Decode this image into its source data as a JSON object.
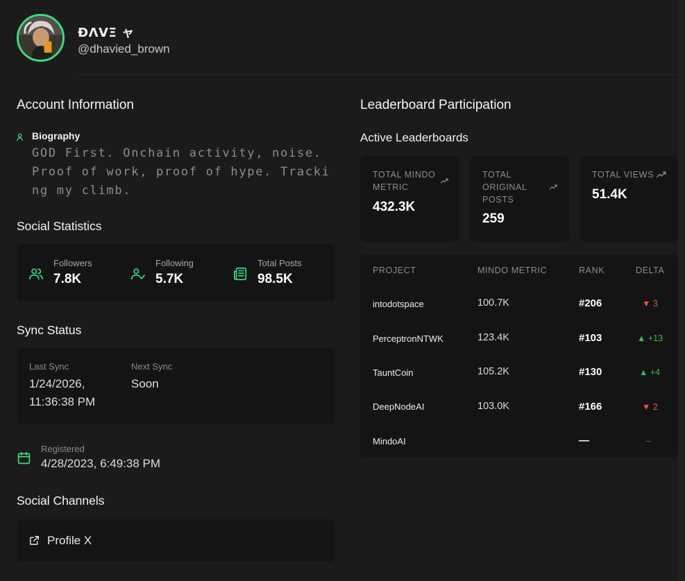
{
  "profile": {
    "display_name": "ÐΛVΞ ャ",
    "handle": "@dhavied_brown"
  },
  "account": {
    "section_title": "Account Information",
    "bio_label": "Biography",
    "bio_text": "GOD First. Onchain activity, noise. Proof of work, proof of hype. Tracking my climb."
  },
  "social_stats": {
    "section_title": "Social Statistics",
    "items": [
      {
        "label": "Followers",
        "value": "7.8K",
        "icon": "users-icon"
      },
      {
        "label": "Following",
        "value": "5.7K",
        "icon": "user-check-icon"
      },
      {
        "label": "Total Posts",
        "value": "98.5K",
        "icon": "newspaper-icon"
      }
    ]
  },
  "sync": {
    "section_title": "Sync Status",
    "last_label": "Last Sync",
    "last_value_line1": "1/24/2026,",
    "last_value_line2": "11:36:38 PM",
    "next_label": "Next Sync",
    "next_value": "Soon"
  },
  "registered": {
    "label": "Registered",
    "value": "4/28/2023, 6:49:38 PM"
  },
  "channels": {
    "section_title": "Social Channels",
    "profile_link": "Profile X"
  },
  "leaderboard": {
    "section_title": "Leaderboard Participation",
    "subtitle": "Active Leaderboards",
    "metrics": [
      {
        "label_line1": "TOTAL MINDO",
        "label_line2": "METRIC",
        "label_line3": "",
        "value": "432.3K"
      },
      {
        "label_line1": "TOTAL",
        "label_line2": "ORIGINAL",
        "label_line3": "POSTS",
        "value": "259"
      },
      {
        "label_line1": "TOTAL VIEWS",
        "label_line2": "",
        "label_line3": "",
        "value": "51.4K"
      }
    ],
    "table": {
      "headers": [
        "PROJECT",
        "MINDO METRIC",
        "RANK",
        "DELTA"
      ],
      "rows": [
        {
          "project": "intodotspace",
          "metric": "100.7K",
          "rank": "#206",
          "delta": "▼ 3",
          "trend": "down"
        },
        {
          "project": "PerceptronNTWK",
          "metric": "123.4K",
          "rank": "#103",
          "delta": "▲ +13",
          "trend": "up"
        },
        {
          "project": "TauntCoin",
          "metric": "105.2K",
          "rank": "#130",
          "delta": "▲ +4",
          "trend": "up"
        },
        {
          "project": "DeepNodeAI",
          "metric": "103.0K",
          "rank": "#166",
          "delta": "▼ 2",
          "trend": "down"
        },
        {
          "project": "MindoAI",
          "metric": "",
          "rank": "—",
          "delta": "–",
          "trend": "none"
        }
      ]
    }
  },
  "colors": {
    "background": "#1b1b1b",
    "card": "#141414",
    "accent": "#3ddc84",
    "up": "#3fb950",
    "down": "#e5534b"
  }
}
